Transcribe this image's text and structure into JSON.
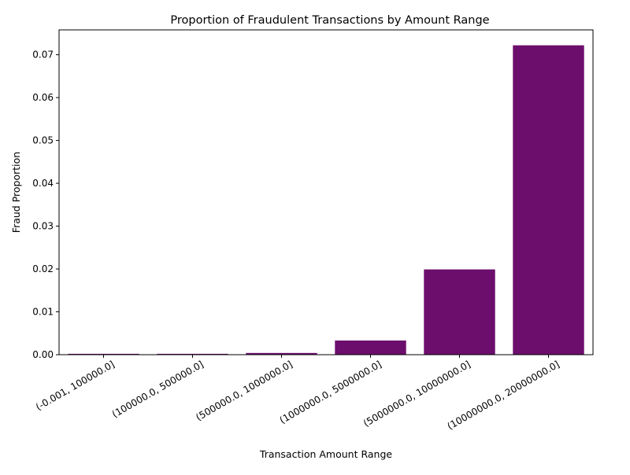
{
  "chart_data": {
    "type": "bar",
    "title": "Proportion of Fraudulent Transactions by Amount Range",
    "xlabel": "Transaction Amount Range",
    "ylabel": "Fraud Proportion",
    "categories": [
      "(-0.001, 100000.0]",
      "(100000.0, 500000.0]",
      "(500000.0, 1000000.0]",
      "(1000000.0, 5000000.0]",
      "(5000000.0, 10000000.0]",
      "(10000000.0, 20000000.0]"
    ],
    "values": [
      0.0002,
      0.0002,
      0.0004,
      0.0033,
      0.0199,
      0.0722
    ],
    "ylim": [
      0,
      0.0758
    ],
    "yticks": [
      "0.00",
      "0.01",
      "0.02",
      "0.03",
      "0.04",
      "0.05",
      "0.06",
      "0.07"
    ],
    "ytick_values": [
      0,
      0.01,
      0.02,
      0.03,
      0.04,
      0.05,
      0.06,
      0.07
    ],
    "bar_color": "#6c0e6c",
    "grid": false,
    "legend": "none"
  }
}
